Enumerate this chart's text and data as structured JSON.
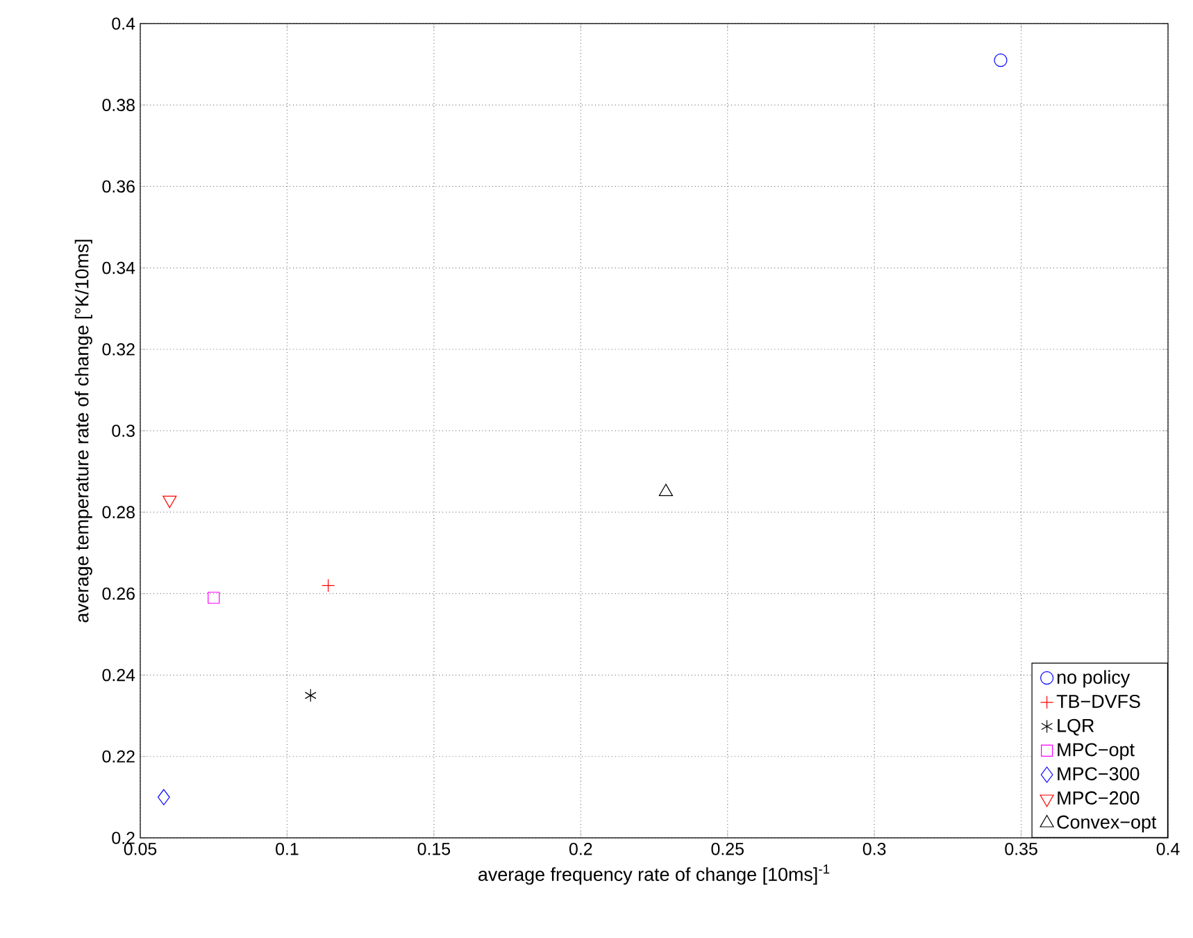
{
  "chart_data": {
    "type": "scatter",
    "xlabel": "average frequency rate of change [10ms]$^{-1}$",
    "ylabel": "average temperature rate of change [°K/10ms]",
    "xlim": [
      0.05,
      0.4
    ],
    "ylim": [
      0.2,
      0.4
    ],
    "xticks": [
      0.05,
      0.1,
      0.15,
      0.2,
      0.25,
      0.3,
      0.35,
      0.4
    ],
    "yticks": [
      0.2,
      0.22,
      0.24,
      0.26,
      0.28,
      0.3,
      0.32,
      0.34,
      0.36,
      0.38,
      0.4
    ],
    "grid": true,
    "legend": "bottom right",
    "series": [
      {
        "name": "no policy",
        "color": "#0000ff",
        "marker": "circle",
        "x": [
          0.343
        ],
        "values": [
          0.391
        ]
      },
      {
        "name": "TB−DVFS",
        "color": "#ff0000",
        "marker": "plus",
        "x": [
          0.114
        ],
        "values": [
          0.262
        ]
      },
      {
        "name": "LQR",
        "color": "#000000",
        "marker": "cross",
        "x": [
          0.108
        ],
        "values": [
          0.235
        ]
      },
      {
        "name": "MPC−opt",
        "color": "#ff00ff",
        "marker": "square",
        "x": [
          0.075
        ],
        "values": [
          0.259
        ]
      },
      {
        "name": "MPC−300",
        "color": "#0000ff",
        "marker": "diamond",
        "x": [
          0.058
        ],
        "values": [
          0.21
        ]
      },
      {
        "name": "MPC−200",
        "color": "#ff0000",
        "marker": "triangle-down",
        "x": [
          0.06
        ],
        "values": [
          0.283
        ]
      },
      {
        "name": "Convex−opt",
        "color": "#000000",
        "marker": "triangle",
        "x": [
          0.229
        ],
        "values": [
          0.285
        ]
      }
    ]
  }
}
